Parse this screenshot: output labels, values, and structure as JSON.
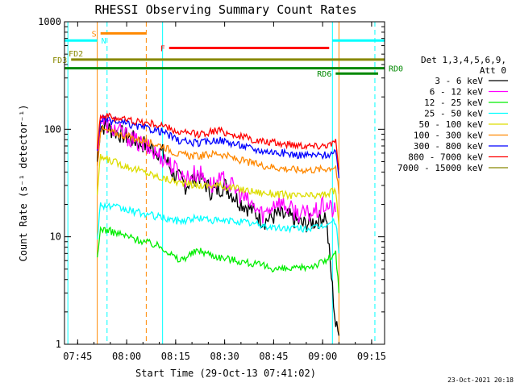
{
  "chart_data": {
    "type": "line",
    "title": "RHESSI Observing Summary Count Rates",
    "xlabel": "Start Time (29-Oct-13 07:41:02)",
    "ylabel": "Count Rate (s⁻¹ detector⁻¹)",
    "y_scale": "log",
    "ylim": [
      1,
      1000
    ],
    "xlim": [
      "07:41",
      "09:19"
    ],
    "x_ticks": [
      "07:45",
      "08:00",
      "08:15",
      "08:30",
      "08:45",
      "09:00",
      "09:15"
    ],
    "y_ticks": [
      {
        "value": 1,
        "label": "1"
      },
      {
        "value": 10,
        "label": "10"
      },
      {
        "value": 100,
        "label": "100"
      },
      {
        "value": 1000,
        "label": "1000"
      }
    ],
    "grid": false,
    "legend_position": "right",
    "legend_header": [
      "Det 1,3,4,5,6,9,",
      "Att 0"
    ],
    "series": [
      {
        "name": "3 - 6 keV",
        "color": "#000000",
        "x": [
          "07:51",
          "07:52",
          "08:11",
          "08:14",
          "08:18",
          "08:22",
          "08:26",
          "08:30",
          "08:34",
          "08:38",
          "08:42",
          "08:46",
          "08:50",
          "08:54",
          "08:58",
          "09:01",
          "09:04",
          "09:05"
        ],
        "values": [
          50,
          110,
          60,
          40,
          30,
          38,
          26,
          30,
          22,
          18,
          14,
          16,
          15,
          13,
          14,
          16,
          1.5,
          1.2
        ]
      },
      {
        "name": "6 - 12 keV",
        "color": "#ff00ff",
        "x": [
          "07:51",
          "07:52",
          "08:11",
          "08:14",
          "08:18",
          "08:22",
          "08:26",
          "08:30",
          "08:34",
          "08:38",
          "08:42",
          "08:46",
          "08:50",
          "08:54",
          "08:58",
          "09:01",
          "09:04"
        ],
        "values": [
          60,
          120,
          55,
          45,
          35,
          40,
          30,
          34,
          26,
          20,
          16,
          22,
          18,
          16,
          17,
          20,
          17
        ]
      },
      {
        "name": "12 - 25 keV",
        "color": "#00ee00",
        "x": [
          "07:51",
          "07:52",
          "08:11",
          "08:16",
          "08:22",
          "08:28",
          "08:34",
          "08:40",
          "08:46",
          "08:52",
          "08:58",
          "09:01",
          "09:04",
          "09:05"
        ],
        "values": [
          6,
          12,
          8,
          6,
          7.5,
          6.5,
          6,
          5.5,
          5,
          5,
          5.5,
          6,
          7,
          3
        ]
      },
      {
        "name": "25 - 50 keV",
        "color": "#00ffff",
        "x": [
          "07:51",
          "07:52",
          "08:11",
          "08:16",
          "08:22",
          "08:28",
          "08:34",
          "08:40",
          "08:46",
          "08:52",
          "08:58",
          "09:01",
          "09:04",
          "09:05"
        ],
        "values": [
          10,
          20,
          15,
          14,
          15,
          14,
          14,
          13,
          12,
          12,
          12,
          13,
          14,
          7
        ]
      },
      {
        "name": "50 - 100 keV",
        "color": "#dddd00",
        "x": [
          "07:51",
          "07:52",
          "08:11",
          "08:16",
          "08:22",
          "08:28",
          "08:34",
          "08:40",
          "08:46",
          "08:52",
          "08:58",
          "09:01",
          "09:04",
          "09:05"
        ],
        "values": [
          25,
          55,
          35,
          32,
          30,
          30,
          28,
          26,
          25,
          24,
          24,
          25,
          27,
          13
        ]
      },
      {
        "name": "100 - 300 keV",
        "color": "#ff8800",
        "x": [
          "07:51",
          "07:52",
          "08:11",
          "08:16",
          "08:22",
          "08:28",
          "08:34",
          "08:40",
          "08:46",
          "08:52",
          "08:58",
          "09:01",
          "09:04",
          "09:05"
        ],
        "values": [
          45,
          100,
          70,
          58,
          56,
          60,
          52,
          47,
          44,
          42,
          42,
          43,
          45,
          25
        ]
      },
      {
        "name": "300 - 800 keV",
        "color": "#0000ff",
        "x": [
          "07:51",
          "07:52",
          "08:11",
          "08:16",
          "08:22",
          "08:28",
          "08:34",
          "08:40",
          "08:46",
          "08:52",
          "08:58",
          "09:01",
          "09:04",
          "09:05"
        ],
        "values": [
          60,
          125,
          95,
          78,
          74,
          80,
          72,
          64,
          61,
          58,
          57,
          58,
          60,
          35
        ]
      },
      {
        "name": "800 - 7000 keV",
        "color": "#ff0000",
        "x": [
          "07:51",
          "07:52",
          "08:11",
          "08:16",
          "08:22",
          "08:28",
          "08:34",
          "08:40",
          "08:46",
          "08:52",
          "08:58",
          "09:01",
          "09:04",
          "09:05"
        ],
        "values": [
          70,
          135,
          108,
          93,
          90,
          98,
          87,
          78,
          74,
          72,
          70,
          72,
          75,
          42
        ]
      },
      {
        "name": "7000 - 15000 keV",
        "color": "#888800",
        "x": [],
        "values": []
      }
    ],
    "vertical_markers": [
      {
        "x": "07:42",
        "color": "#00ffff",
        "dashed": false
      },
      {
        "x": "07:51",
        "color": "#ff8800",
        "dashed": false
      },
      {
        "x": "07:54",
        "color": "#00ffff",
        "dashed": true
      },
      {
        "x": "08:06",
        "color": "#ff8800",
        "dashed": true
      },
      {
        "x": "08:11",
        "color": "#00ffff",
        "dashed": false
      },
      {
        "x": "09:03",
        "color": "#00ffff",
        "dashed": false
      },
      {
        "x": "09:05",
        "color": "#ff8800",
        "dashed": false
      },
      {
        "x": "09:16",
        "color": "#00ffff",
        "dashed": true
      }
    ],
    "flag_bars": [
      {
        "label": "S",
        "color": "#ff8800",
        "x0": "07:52",
        "x1": "08:06",
        "y": 780,
        "label_side": "left"
      },
      {
        "label": "N",
        "color": "#00ffff",
        "x0": "07:40",
        "x1": "07:51",
        "y": 670,
        "label_side": "right"
      },
      {
        "label": "N",
        "color": "#00ffff",
        "x0": "09:03",
        "x1": "09:20",
        "y": 670,
        "label_side": "none"
      },
      {
        "label": "F",
        "color": "#ff0000",
        "x0": "08:13",
        "x1": "09:02",
        "y": 570,
        "label_side": "left"
      },
      {
        "label": "FD2",
        "color": "#888800",
        "x0": "07:40",
        "x1": "07:41",
        "y": 510,
        "label_side": "right"
      },
      {
        "label": "FD3",
        "color": "#888800",
        "x0": "07:43",
        "x1": "09:20",
        "y": 445,
        "label_side": "left"
      },
      {
        "label": "RD0",
        "color": "#008800",
        "x0": "07:40",
        "x1": "09:20",
        "y": 370,
        "label_side": "right"
      },
      {
        "label": "RD6",
        "color": "#008800",
        "x0": "09:04",
        "x1": "09:17",
        "y": 330,
        "label_side": "left"
      }
    ]
  },
  "timestamp": "23-Oct-2021 20:18"
}
